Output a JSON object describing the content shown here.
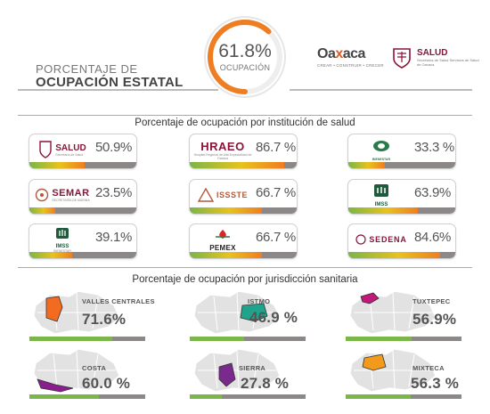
{
  "header": {
    "title_line1": "PORCENTAJE DE",
    "title_line2": "OCUPACIÓN ESTATAL",
    "gauge_value": "61.8%",
    "gauge_fraction": 0.618,
    "gauge_label": "OCUPACIÓN",
    "brand_word_a": "Oa",
    "brand_word_x": "x",
    "brand_word_b": "aca",
    "brand_tagline": "CREAR • CONSTRUIR • CRECER",
    "salud_word": "SALUD",
    "salud_sub": "Secretaría de Salud Servicios de Salud de Oaxaca"
  },
  "institutions_section": {
    "title": "Porcentaje de ocupación por institución de salud",
    "cards": [
      {
        "logo": "SALUD",
        "logo_sub": "Secretaría de Salud",
        "value": "50.9%",
        "fraction": 0.509,
        "logo_icon": "salud-logo"
      },
      {
        "logo": "HRAEO",
        "logo_sub": "Hospital Regional de Alta Especialidad de Oaxaca",
        "value": "86.7 %",
        "fraction": 0.867,
        "logo_icon": "hraeo-logo"
      },
      {
        "logo": "",
        "logo_sub": "BIENESTAR",
        "value": "33.3 %",
        "fraction": 0.333,
        "logo_icon": "bienestar-logo"
      },
      {
        "logo": "SEMAR",
        "logo_sub": "SECRETARÍA DE MARINA",
        "value": "23.5%",
        "fraction": 0.235,
        "logo_icon": "semar-logo"
      },
      {
        "logo": "ISSSTE",
        "logo_sub": "",
        "value": "66.7 %",
        "fraction": 0.667,
        "logo_icon": "issste-logo"
      },
      {
        "logo": "IMSS",
        "logo_sub": "",
        "value": "63.9%",
        "fraction": 0.639,
        "logo_icon": "imss-logo"
      },
      {
        "logo": "IMSS",
        "logo_sub": "BIENESTAR",
        "value": "39.1%",
        "fraction": 0.391,
        "logo_icon": "imss-bienestar-logo"
      },
      {
        "logo": "PEMEX",
        "logo_sub": "",
        "value": "66.7 %",
        "fraction": 0.667,
        "logo_icon": "pemex-logo"
      },
      {
        "logo": "SEDENA",
        "logo_sub": "",
        "value": "84.6%",
        "fraction": 0.846,
        "logo_icon": "sedena-logo"
      }
    ]
  },
  "jurisdictions_section": {
    "title": "Porcentaje de ocupación por jurisdicción sanitaria",
    "regions": [
      {
        "name": "VALLES CENTRALES",
        "value": "71.6%",
        "fraction": 0.716,
        "color": "#f26b21"
      },
      {
        "name": "ISTMO",
        "value": "46.9 %",
        "fraction": 0.469,
        "color": "#1fa38b"
      },
      {
        "name": "TUXTEPEC",
        "value": "56.9%",
        "fraction": 0.569,
        "color": "#c2187a"
      },
      {
        "name": "COSTA",
        "value": "60.0 %",
        "fraction": 0.6,
        "color": "#8b1e8f"
      },
      {
        "name": "SIERRA",
        "value": "27.8 %",
        "fraction": 0.278,
        "color": "#7a2a8c"
      },
      {
        "name": "MIXTECA",
        "value": "56.3 %",
        "fraction": 0.563,
        "color": "#f39a1c"
      }
    ]
  },
  "colors": {
    "bar_green": "#7ab648",
    "bar_yellow": "#e8c21d",
    "bar_orange": "#ef7d22",
    "bar_track": "#8c8888",
    "accent": "#8a1538"
  }
}
